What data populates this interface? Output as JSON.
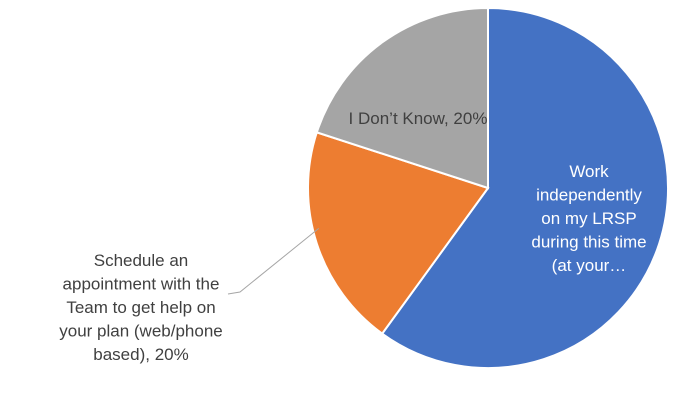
{
  "chart_data": {
    "type": "pie",
    "title": "",
    "slices": [
      {
        "label": "Work independently on my LRSP during this time (at your…",
        "percent_label": "",
        "value": 60,
        "color": "#4472C4",
        "label_color": "#FFFFFF",
        "label_lines": [
          "Work",
          "independently",
          "on my LRSP",
          "during this time",
          "(at your…"
        ]
      },
      {
        "label": "Schedule an appointment with the Team to get help on your plan (web/phone based)",
        "percent_label": "20%",
        "value": 20,
        "color": "#ED7D31",
        "label_color": "#404040",
        "label_lines": [
          "Schedule an",
          "appointment with the",
          "Team to get help on",
          "your plan (web/phone",
          "based), 20%"
        ]
      },
      {
        "label": "I Don’t Know",
        "percent_label": "20%",
        "value": 20,
        "color": "#A5A5A5",
        "label_color": "#404040",
        "label_lines": [
          "I Don’t Know, 20%"
        ]
      }
    ],
    "legend": "none"
  }
}
